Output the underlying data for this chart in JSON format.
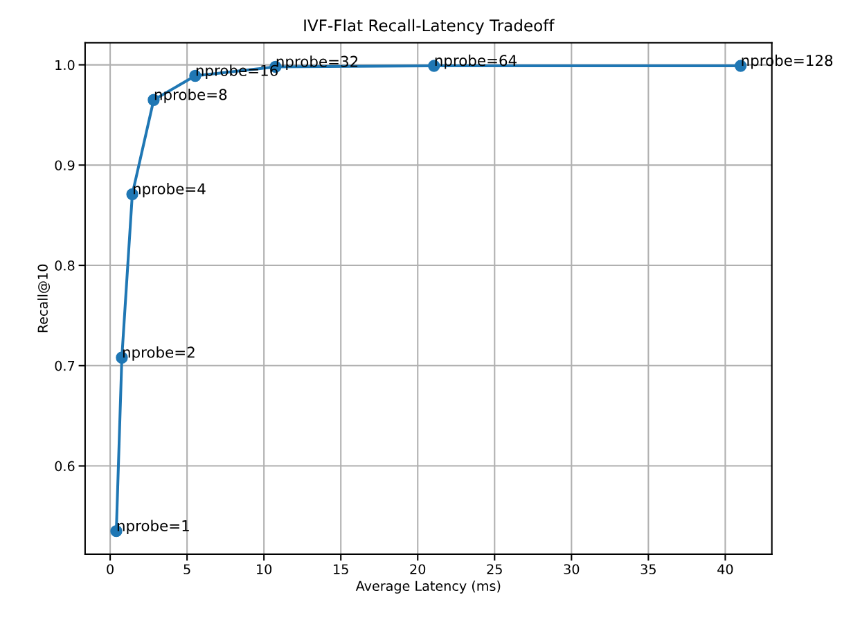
{
  "chart_data": {
    "type": "line",
    "title": "IVF-Flat Recall-Latency Tradeoff",
    "xlabel": "Average Latency (ms)",
    "ylabel": "Recall@10",
    "x": [
      0.4,
      0.76,
      1.44,
      2.83,
      5.53,
      10.75,
      21.06,
      41.0
    ],
    "series": [
      {
        "color": "#1f77b4",
        "values": [
          0.535,
          0.708,
          0.871,
          0.965,
          0.989,
          0.998,
          0.999,
          0.999
        ]
      }
    ],
    "xlim": [
      -1.63,
      43.03
    ],
    "ylim": [
      0.512,
      1.022
    ],
    "xticks": [
      0,
      5,
      10,
      15,
      20,
      25,
      30,
      35,
      40
    ],
    "yticks": [
      {
        "value": 0.6,
        "label": "0.6"
      },
      {
        "value": 0.7,
        "label": "0.7"
      },
      {
        "value": 0.8,
        "label": "0.8"
      },
      {
        "value": 0.9,
        "label": "0.9"
      },
      {
        "value": 1.0,
        "label": "1.0"
      }
    ],
    "grid": true,
    "marker": "circle",
    "line_style": "solid",
    "legend": false,
    "annotations": [
      {
        "text": "nprobe=1",
        "x": 0.4,
        "y": 0.535
      },
      {
        "text": "nprobe=2",
        "x": 0.76,
        "y": 0.708
      },
      {
        "text": "nprobe=4",
        "x": 1.44,
        "y": 0.871
      },
      {
        "text": "nprobe=8",
        "x": 2.83,
        "y": 0.965
      },
      {
        "text": "nprobe=16",
        "x": 5.53,
        "y": 0.989
      },
      {
        "text": "nprobe=32",
        "x": 10.75,
        "y": 0.998
      },
      {
        "text": "nprobe=64",
        "x": 21.06,
        "y": 0.999
      },
      {
        "text": "nprobe=128",
        "x": 41.0,
        "y": 0.999
      }
    ]
  }
}
